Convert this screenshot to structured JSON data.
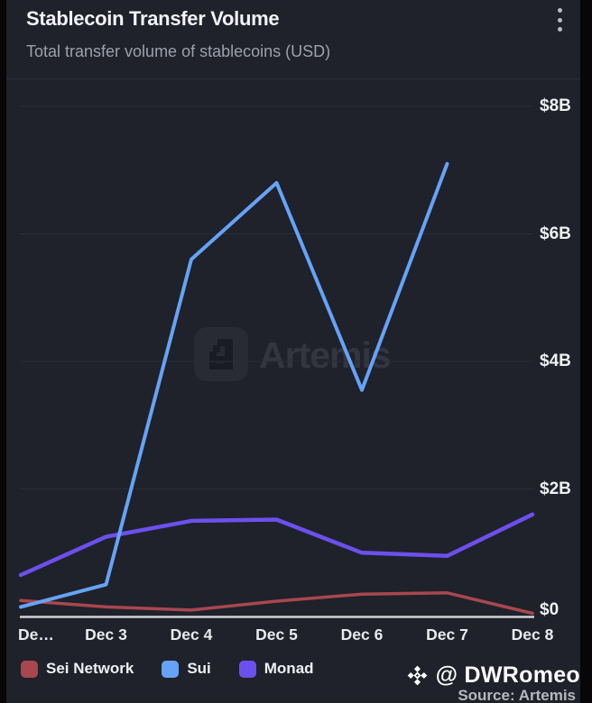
{
  "header": {
    "title": "Stablecoin Transfer Volume",
    "subtitle": "Total transfer volume of stablecoins (USD)",
    "menu_icon": "kebab-vertical-icon"
  },
  "chart_data": {
    "type": "line",
    "title": "Stablecoin Transfer Volume",
    "subtitle": "Total transfer volume of stablecoins (USD)",
    "unit": "USD (billions)",
    "x_labels": [
      "De…",
      "Dec 3",
      "Dec 4",
      "Dec 5",
      "Dec 6",
      "Dec 7",
      "Dec 8"
    ],
    "y_ticks": [
      0,
      2,
      4,
      6,
      8
    ],
    "y_tick_labels": [
      "$0",
      "$2B",
      "$4B",
      "$6B",
      "$8B"
    ],
    "ylim": [
      0,
      8
    ],
    "grid": "horizontal",
    "legend_position": "bottom-left",
    "series": [
      {
        "name": "Sei Network",
        "color": "#a8474f",
        "values": [
          0.25,
          0.15,
          0.1,
          0.24,
          0.35,
          0.37,
          0.05
        ]
      },
      {
        "name": "Sui",
        "color": "#66a3f6",
        "values": [
          0.15,
          0.5,
          5.6,
          6.8,
          3.55,
          7.1,
          null
        ]
      },
      {
        "name": "Monad",
        "color": "#6c50ee",
        "values": [
          0.65,
          1.25,
          1.5,
          1.52,
          1.0,
          0.95,
          1.6
        ]
      }
    ],
    "watermark": "Artemis"
  },
  "footer": {
    "credit": "@ DWRomeo",
    "credit_icon": "binance-diamond-icon",
    "source": "Source: Artemis"
  },
  "colors": {
    "card_bg": "#1f212b",
    "outer_bg": "#070708",
    "gridline": "#2a2d39",
    "axis_line": "#d3d4da",
    "sei": "#a8474f",
    "sui": "#66a3f6",
    "monad": "#6c50ee"
  }
}
